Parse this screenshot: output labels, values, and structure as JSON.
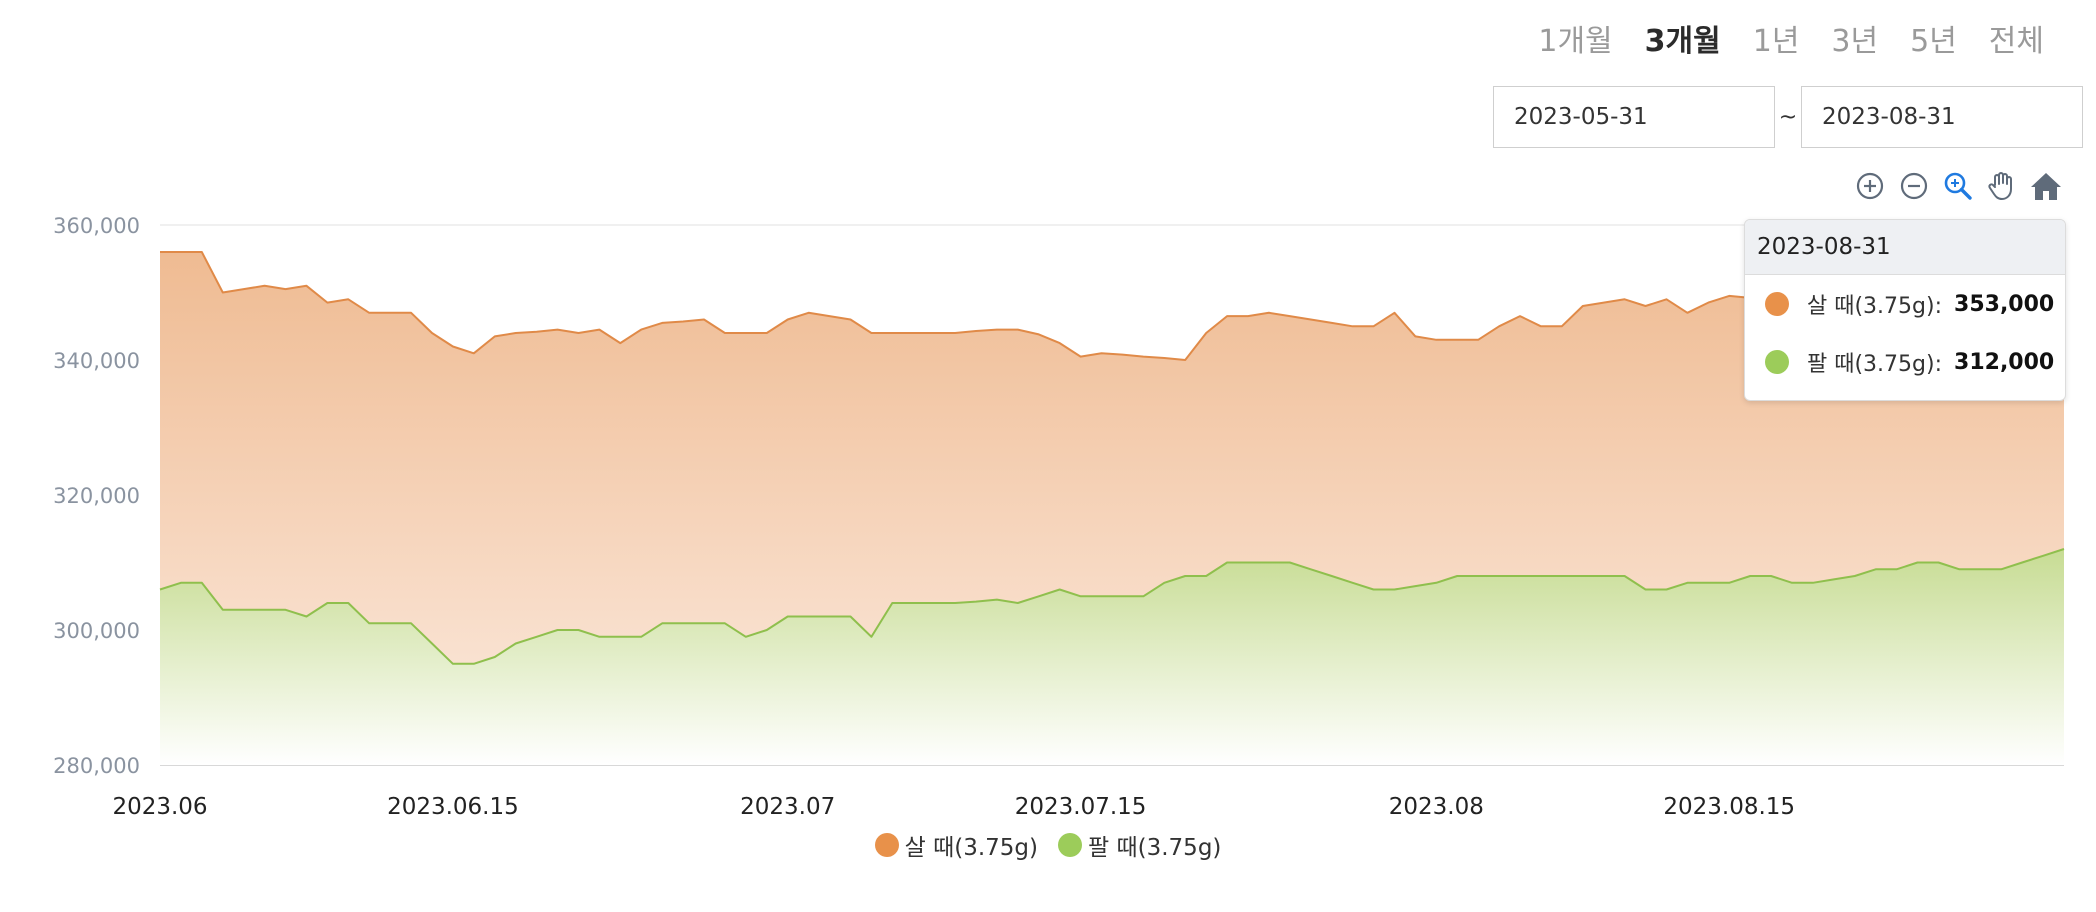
{
  "periods": [
    "1개월",
    "3개월",
    "1년",
    "3년",
    "5년",
    "전체"
  ],
  "active_period": "3개월",
  "date_range": {
    "start": "2023-05-31",
    "separator": "~",
    "end": "2023-08-31"
  },
  "toolbar_icons": [
    "zoom-in-icon",
    "zoom-out-icon",
    "zoom-selection-icon",
    "pan-hand-icon",
    "home-reset-icon"
  ],
  "tooltip": {
    "date": "2023-08-31",
    "rows": [
      {
        "label": "살 때(3.75g):",
        "value": "353,000",
        "color": "#e8914a"
      },
      {
        "label": "팔 때(3.75g):",
        "value": "312,000",
        "color": "#9ccc5a"
      }
    ]
  },
  "chart_data": {
    "type": "area",
    "title": "",
    "xlabel": "",
    "ylabel": "",
    "x_ticks": [
      "2023.06",
      "2023.06.15",
      "2023.07",
      "2023.07.15",
      "2023.08",
      "2023.08.15"
    ],
    "x_tick_dates": [
      "2023-06-01",
      "2023-06-15",
      "2023-07-01",
      "2023-07-15",
      "2023-08-01",
      "2023-08-15"
    ],
    "y_ticks": [
      "280,000",
      "300,000",
      "320,000",
      "340,000",
      "360,000"
    ],
    "ylim": [
      280000,
      361000
    ],
    "xlim": [
      "2023-06-01",
      "2023-08-31"
    ],
    "grid": true,
    "legend_position": "bottom",
    "series": [
      {
        "name": "살 때(3.75g)",
        "color": "#e8914a",
        "points": [
          [
            "2023-06-01",
            356000
          ],
          [
            "2023-06-02",
            356000
          ],
          [
            "2023-06-03",
            356000
          ],
          [
            "2023-06-04",
            350000
          ],
          [
            "2023-06-05",
            350500
          ],
          [
            "2023-06-06",
            351000
          ],
          [
            "2023-06-07",
            350500
          ],
          [
            "2023-06-08",
            351000
          ],
          [
            "2023-06-09",
            348500
          ],
          [
            "2023-06-10",
            349000
          ],
          [
            "2023-06-11",
            347000
          ],
          [
            "2023-06-12",
            347000
          ],
          [
            "2023-06-13",
            347000
          ],
          [
            "2023-06-14",
            344000
          ],
          [
            "2023-06-15",
            342000
          ],
          [
            "2023-06-16",
            341000
          ],
          [
            "2023-06-17",
            343500
          ],
          [
            "2023-06-18",
            344000
          ],
          [
            "2023-06-19",
            344200
          ],
          [
            "2023-06-20",
            344500
          ],
          [
            "2023-06-21",
            344000
          ],
          [
            "2023-06-22",
            344500
          ],
          [
            "2023-06-23",
            342500
          ],
          [
            "2023-06-24",
            344500
          ],
          [
            "2023-06-25",
            345500
          ],
          [
            "2023-06-26",
            345700
          ],
          [
            "2023-06-27",
            346000
          ],
          [
            "2023-06-28",
            344000
          ],
          [
            "2023-06-29",
            344000
          ],
          [
            "2023-06-30",
            344000
          ],
          [
            "2023-07-01",
            346000
          ],
          [
            "2023-07-02",
            347000
          ],
          [
            "2023-07-03",
            346500
          ],
          [
            "2023-07-04",
            346000
          ],
          [
            "2023-07-05",
            344000
          ],
          [
            "2023-07-06",
            344000
          ],
          [
            "2023-07-07",
            344000
          ],
          [
            "2023-07-08",
            344000
          ],
          [
            "2023-07-09",
            344000
          ],
          [
            "2023-07-10",
            344300
          ],
          [
            "2023-07-11",
            344500
          ],
          [
            "2023-07-12",
            344500
          ],
          [
            "2023-07-13",
            343800
          ],
          [
            "2023-07-14",
            342500
          ],
          [
            "2023-07-15",
            340500
          ],
          [
            "2023-07-16",
            341000
          ],
          [
            "2023-07-17",
            340800
          ],
          [
            "2023-07-18",
            340500
          ],
          [
            "2023-07-19",
            340300
          ],
          [
            "2023-07-20",
            340000
          ],
          [
            "2023-07-21",
            344000
          ],
          [
            "2023-07-22",
            346500
          ],
          [
            "2023-07-23",
            346500
          ],
          [
            "2023-07-24",
            347000
          ],
          [
            "2023-07-25",
            346500
          ],
          [
            "2023-07-26",
            346000
          ],
          [
            "2023-07-27",
            345500
          ],
          [
            "2023-07-28",
            345000
          ],
          [
            "2023-07-29",
            345000
          ],
          [
            "2023-07-30",
            347000
          ],
          [
            "2023-07-31",
            343500
          ],
          [
            "2023-08-01",
            343000
          ],
          [
            "2023-08-02",
            343000
          ],
          [
            "2023-08-03",
            343000
          ],
          [
            "2023-08-04",
            345000
          ],
          [
            "2023-08-05",
            346500
          ],
          [
            "2023-08-06",
            345000
          ],
          [
            "2023-08-07",
            345000
          ],
          [
            "2023-08-08",
            348000
          ],
          [
            "2023-08-09",
            348500
          ],
          [
            "2023-08-10",
            349000
          ],
          [
            "2023-08-11",
            348000
          ],
          [
            "2023-08-12",
            349000
          ],
          [
            "2023-08-13",
            347000
          ],
          [
            "2023-08-14",
            348500
          ],
          [
            "2023-08-15",
            349500
          ],
          [
            "2023-08-16",
            349200
          ],
          [
            "2023-08-17",
            349000
          ],
          [
            "2023-08-18",
            349000
          ],
          [
            "2023-08-19",
            350000
          ],
          [
            "2023-08-20",
            350500
          ],
          [
            "2023-08-21",
            351000
          ],
          [
            "2023-08-22",
            351000
          ],
          [
            "2023-08-23",
            351500
          ],
          [
            "2023-08-24",
            352000
          ],
          [
            "2023-08-25",
            352000
          ],
          [
            "2023-08-26",
            352000
          ],
          [
            "2023-08-27",
            352500
          ],
          [
            "2023-08-28",
            352500
          ],
          [
            "2023-08-29",
            352500
          ],
          [
            "2023-08-30",
            353000
          ],
          [
            "2023-08-31",
            353000
          ]
        ]
      },
      {
        "name": "팔 때(3.75g)",
        "color": "#9ccc5a",
        "points": [
          [
            "2023-06-01",
            306000
          ],
          [
            "2023-06-02",
            307000
          ],
          [
            "2023-06-03",
            307000
          ],
          [
            "2023-06-04",
            303000
          ],
          [
            "2023-06-05",
            303000
          ],
          [
            "2023-06-06",
            303000
          ],
          [
            "2023-06-07",
            303000
          ],
          [
            "2023-06-08",
            302000
          ],
          [
            "2023-06-09",
            304000
          ],
          [
            "2023-06-10",
            304000
          ],
          [
            "2023-06-11",
            301000
          ],
          [
            "2023-06-12",
            301000
          ],
          [
            "2023-06-13",
            301000
          ],
          [
            "2023-06-14",
            298000
          ],
          [
            "2023-06-15",
            295000
          ],
          [
            "2023-06-16",
            295000
          ],
          [
            "2023-06-17",
            296000
          ],
          [
            "2023-06-18",
            298000
          ],
          [
            "2023-06-19",
            299000
          ],
          [
            "2023-06-20",
            300000
          ],
          [
            "2023-06-21",
            300000
          ],
          [
            "2023-06-22",
            299000
          ],
          [
            "2023-06-23",
            299000
          ],
          [
            "2023-06-24",
            299000
          ],
          [
            "2023-06-25",
            301000
          ],
          [
            "2023-06-26",
            301000
          ],
          [
            "2023-06-27",
            301000
          ],
          [
            "2023-06-28",
            301000
          ],
          [
            "2023-06-29",
            299000
          ],
          [
            "2023-06-30",
            300000
          ],
          [
            "2023-07-01",
            302000
          ],
          [
            "2023-07-02",
            302000
          ],
          [
            "2023-07-03",
            302000
          ],
          [
            "2023-07-04",
            302000
          ],
          [
            "2023-07-05",
            299000
          ],
          [
            "2023-07-06",
            304000
          ],
          [
            "2023-07-07",
            304000
          ],
          [
            "2023-07-08",
            304000
          ],
          [
            "2023-07-09",
            304000
          ],
          [
            "2023-07-10",
            304200
          ],
          [
            "2023-07-11",
            304500
          ],
          [
            "2023-07-12",
            304000
          ],
          [
            "2023-07-13",
            305000
          ],
          [
            "2023-07-14",
            306000
          ],
          [
            "2023-07-15",
            305000
          ],
          [
            "2023-07-16",
            305000
          ],
          [
            "2023-07-17",
            305000
          ],
          [
            "2023-07-18",
            305000
          ],
          [
            "2023-07-19",
            307000
          ],
          [
            "2023-07-20",
            308000
          ],
          [
            "2023-07-21",
            308000
          ],
          [
            "2023-07-22",
            310000
          ],
          [
            "2023-07-23",
            310000
          ],
          [
            "2023-07-24",
            310000
          ],
          [
            "2023-07-25",
            310000
          ],
          [
            "2023-07-26",
            309000
          ],
          [
            "2023-07-27",
            308000
          ],
          [
            "2023-07-28",
            307000
          ],
          [
            "2023-07-29",
            306000
          ],
          [
            "2023-07-30",
            306000
          ],
          [
            "2023-07-31",
            306500
          ],
          [
            "2023-08-01",
            307000
          ],
          [
            "2023-08-02",
            308000
          ],
          [
            "2023-08-03",
            308000
          ],
          [
            "2023-08-04",
            308000
          ],
          [
            "2023-08-05",
            308000
          ],
          [
            "2023-08-06",
            308000
          ],
          [
            "2023-08-07",
            308000
          ],
          [
            "2023-08-08",
            308000
          ],
          [
            "2023-08-09",
            308000
          ],
          [
            "2023-08-10",
            308000
          ],
          [
            "2023-08-11",
            306000
          ],
          [
            "2023-08-12",
            306000
          ],
          [
            "2023-08-13",
            307000
          ],
          [
            "2023-08-14",
            307000
          ],
          [
            "2023-08-15",
            307000
          ],
          [
            "2023-08-16",
            308000
          ],
          [
            "2023-08-17",
            308000
          ],
          [
            "2023-08-18",
            307000
          ],
          [
            "2023-08-19",
            307000
          ],
          [
            "2023-08-20",
            307500
          ],
          [
            "2023-08-21",
            308000
          ],
          [
            "2023-08-22",
            309000
          ],
          [
            "2023-08-23",
            309000
          ],
          [
            "2023-08-24",
            310000
          ],
          [
            "2023-08-25",
            310000
          ],
          [
            "2023-08-26",
            309000
          ],
          [
            "2023-08-27",
            309000
          ],
          [
            "2023-08-28",
            309000
          ],
          [
            "2023-08-29",
            310000
          ],
          [
            "2023-08-30",
            311000
          ],
          [
            "2023-08-31",
            312000
          ]
        ]
      }
    ]
  }
}
